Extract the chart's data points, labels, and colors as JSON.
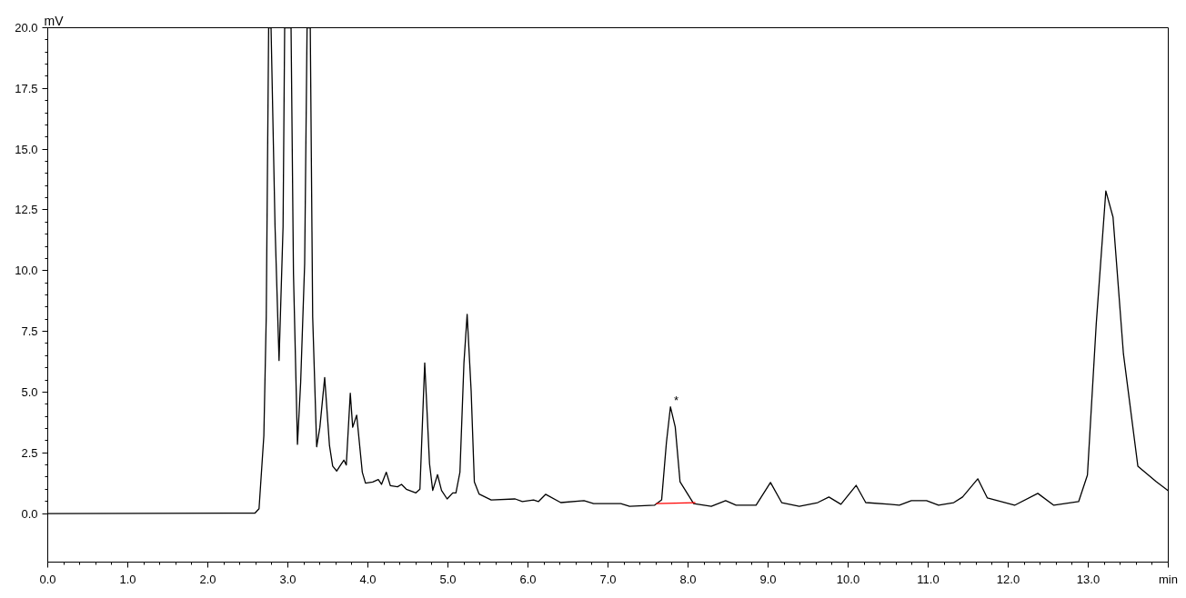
{
  "chart_data": {
    "type": "line",
    "ylabel": "mV",
    "xlim": [
      0,
      14
    ],
    "ylim": [
      -2,
      20
    ],
    "xticks": [
      {
        "value": 0,
        "label": "0.0"
      },
      {
        "value": 1,
        "label": "1.0"
      },
      {
        "value": 2,
        "label": "2.0"
      },
      {
        "value": 3,
        "label": "3.0"
      },
      {
        "value": 4,
        "label": "4.0"
      },
      {
        "value": 5,
        "label": "5.0"
      },
      {
        "value": 6,
        "label": "6.0"
      },
      {
        "value": 7,
        "label": "7.0"
      },
      {
        "value": 8,
        "label": "8.0"
      },
      {
        "value": 9,
        "label": "9.0"
      },
      {
        "value": 10,
        "label": "10.0"
      },
      {
        "value": 11,
        "label": "11.0"
      },
      {
        "value": 12,
        "label": "12.0"
      },
      {
        "value": 13,
        "label": "13.0"
      },
      {
        "value": 14,
        "label": "min"
      }
    ],
    "yticks": [
      {
        "value": 0,
        "label": "0.0"
      },
      {
        "value": 2.5,
        "label": "2.5"
      },
      {
        "value": 5,
        "label": "5.0"
      },
      {
        "value": 7.5,
        "label": "7.5"
      },
      {
        "value": 10,
        "label": "10.0"
      },
      {
        "value": 12.5,
        "label": "12.5"
      },
      {
        "value": 15,
        "label": "15.0"
      },
      {
        "value": 17.5,
        "label": "17.5"
      },
      {
        "value": 20,
        "label": "20.0"
      }
    ],
    "grid": false,
    "marker": "none",
    "line_style": "solid",
    "annotations": [
      {
        "text": "*",
        "x": 7.8,
        "y": 4.39
      }
    ],
    "series": [
      {
        "color": "#000000",
        "x": [
          0,
          2.59,
          2.64,
          2.7,
          2.73,
          2.76,
          2.79,
          2.84,
          2.89,
          2.94,
          2.96,
          3.04,
          3.07,
          3.12,
          3.16,
          3.21,
          3.24,
          3.28,
          3.31,
          3.36,
          3.4,
          3.46,
          3.52,
          3.56,
          3.61,
          3.65,
          3.7,
          3.73,
          3.78,
          3.81,
          3.86,
          3.93,
          3.97,
          4.06,
          4.13,
          4.17,
          4.23,
          4.28,
          4.37,
          4.42,
          4.48,
          4.6,
          4.65,
          4.71,
          4.77,
          4.81,
          4.87,
          4.92,
          4.99,
          5.06,
          5.1,
          5.15,
          5.2,
          5.24,
          5.29,
          5.33,
          5.39,
          5.54,
          5.84,
          5.93,
          6.07,
          6.13,
          6.22,
          6.41,
          6.7,
          6.82,
          7.16,
          7.27,
          7.58,
          7.67,
          7.73,
          7.78,
          7.84,
          7.9,
          8.07,
          8.29,
          8.47,
          8.6,
          8.85,
          9.03,
          9.17,
          9.39,
          9.62,
          9.76,
          9.91,
          10.1,
          10.22,
          10.52,
          10.64,
          10.79,
          10.98,
          11.13,
          11.32,
          11.43,
          11.62,
          11.74,
          12.08,
          12.37,
          12.57,
          12.88,
          12.99,
          13.1,
          13.22,
          13.31,
          13.44,
          13.62,
          13.85,
          14.0
        ],
        "values": [
          0,
          0.02,
          0.2,
          3.2,
          8.1,
          20,
          20,
          11.8,
          6.3,
          11.8,
          20,
          20,
          9.9,
          2.85,
          5.4,
          10.3,
          20,
          20,
          8.1,
          2.75,
          3.55,
          5.6,
          2.8,
          1.95,
          1.75,
          1.95,
          2.2,
          2.0,
          4.95,
          3.55,
          4.05,
          1.7,
          1.25,
          1.3,
          1.4,
          1.2,
          1.7,
          1.15,
          1.1,
          1.2,
          1.0,
          0.85,
          1.0,
          6.2,
          2.05,
          0.95,
          1.6,
          0.95,
          0.6,
          0.85,
          0.85,
          1.7,
          6.2,
          8.2,
          5.05,
          1.3,
          0.8,
          0.56,
          0.6,
          0.49,
          0.56,
          0.49,
          0.79,
          0.45,
          0.53,
          0.41,
          0.41,
          0.3,
          0.34,
          0.56,
          2.93,
          4.39,
          3.56,
          1.31,
          0.41,
          0.3,
          0.53,
          0.34,
          0.34,
          1.28,
          0.45,
          0.3,
          0.45,
          0.68,
          0.38,
          1.16,
          0.45,
          0.38,
          0.34,
          0.53,
          0.53,
          0.34,
          0.45,
          0.68,
          1.43,
          0.64,
          0.34,
          0.83,
          0.34,
          0.49,
          1.58,
          7.8,
          13.28,
          12.2,
          6.57,
          1.95,
          1.31,
          0.94
        ]
      },
      {
        "color": "#ff0000",
        "x": [
          7.6,
          8.09
        ],
        "values": [
          0.41,
          0.45
        ]
      }
    ]
  }
}
